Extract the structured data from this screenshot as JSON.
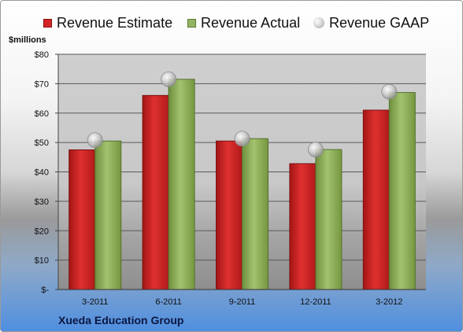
{
  "legend": {
    "estimate": "Revenue Estimate",
    "actual": "Revenue Actual",
    "gaap": "Revenue GAAP"
  },
  "unit_label": "$millions",
  "company": "Xueda Education Group",
  "colors": {
    "estimate": "#d42424",
    "actual": "#93b563",
    "gaap": "#c8c8c8"
  },
  "chart_data": {
    "type": "bar",
    "categories": [
      "3-2011",
      "6-2011",
      "9-2011",
      "12-2011",
      "3-2012"
    ],
    "series": [
      {
        "name": "Revenue Estimate",
        "values": [
          47.5,
          66,
          50.5,
          42.8,
          61
        ]
      },
      {
        "name": "Revenue Actual",
        "values": [
          50.5,
          71.5,
          51.3,
          47.6,
          67
        ]
      },
      {
        "name": "Revenue GAAP",
        "values": [
          50.8,
          71.5,
          51.3,
          47.6,
          67.3
        ]
      }
    ],
    "ylabel": "$millions",
    "ylim": [
      0,
      80
    ],
    "yticks": [
      0,
      10,
      20,
      30,
      40,
      50,
      60,
      70,
      80
    ],
    "ytick_labels": [
      "$-",
      "$10",
      "$20",
      "$30",
      "$40",
      "$50",
      "$60",
      "$70",
      "$80"
    ],
    "grid": true,
    "legend_position": "top"
  }
}
